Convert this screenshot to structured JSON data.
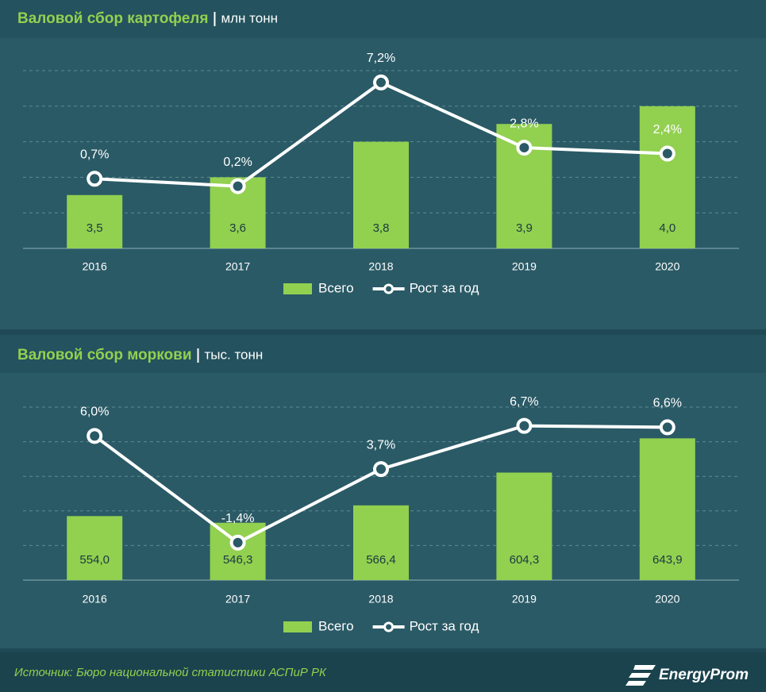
{
  "chart_data": [
    {
      "type": "bar-line",
      "title": "Валовой сбор картофеля",
      "unit": "млн тонн",
      "categories": [
        "2016",
        "2017",
        "2018",
        "2019",
        "2020"
      ],
      "series": [
        {
          "name": "Всего",
          "type": "bar",
          "color": "#92d050",
          "values": [
            3.5,
            3.6,
            3.8,
            3.9,
            4.0
          ],
          "value_labels": [
            "3,5",
            "3,6",
            "3,8",
            "3,9",
            "4,0"
          ]
        },
        {
          "name": "Рост за год",
          "type": "line",
          "axis": "y2",
          "color": "#ffffff",
          "values": [
            0.7,
            0.2,
            7.2,
            2.8,
            2.4
          ],
          "value_labels": [
            "0,7%",
            "0,2%",
            "7,2%",
            "2,8%",
            "2,4%"
          ]
        }
      ],
      "ylim": [
        3.2,
        4.2
      ],
      "y2lim": [
        -4,
        8
      ],
      "grid": true,
      "legend": "bottom"
    },
    {
      "type": "bar-line",
      "title": "Валовой сбор моркови",
      "unit": "тыс. тонн",
      "categories": [
        "2016",
        "2017",
        "2018",
        "2019",
        "2020"
      ],
      "series": [
        {
          "name": "Всего",
          "type": "bar",
          "color": "#92d050",
          "values": [
            554.0,
            546.3,
            566.4,
            604.3,
            643.9
          ],
          "value_labels": [
            "554,0",
            "546,3",
            "566,4",
            "604,3",
            "643,9"
          ]
        },
        {
          "name": "Рост за год",
          "type": "line",
          "axis": "y2",
          "color": "#ffffff",
          "values": [
            6.0,
            -1.4,
            3.7,
            6.7,
            6.6
          ],
          "value_labels": [
            "6,0%",
            "-1,4%",
            "3,7%",
            "6,7%",
            "6,6%"
          ]
        }
      ],
      "ylim": [
        480,
        680
      ],
      "y2lim": [
        -4,
        8
      ],
      "grid": true,
      "legend": "bottom"
    }
  ],
  "source": "Источник: Бюро национальной  статистики АСПиР РК",
  "logo": "EnergyProm"
}
